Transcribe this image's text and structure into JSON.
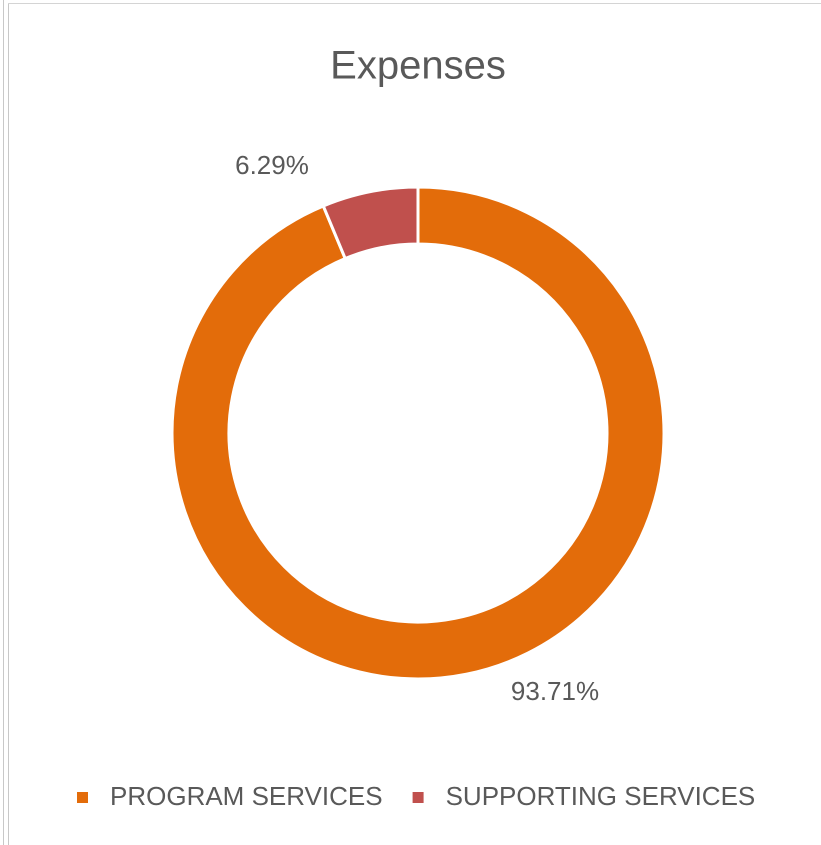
{
  "chart_data": {
    "type": "donut",
    "title": "Expenses",
    "categories": [
      "PROGRAM SERVICES",
      "SUPPORTING SERVICES"
    ],
    "values": [
      93.71,
      6.29
    ],
    "value_labels": [
      "93.71%",
      "6.29%"
    ],
    "colors": [
      "#e36c0a",
      "#c0504d"
    ],
    "legend": "bottom"
  }
}
